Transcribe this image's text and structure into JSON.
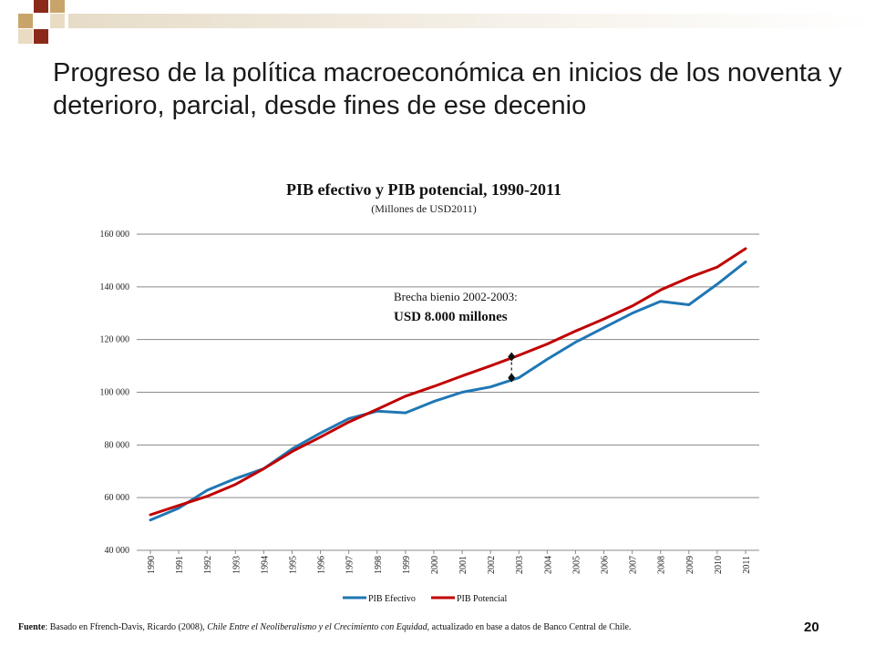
{
  "slide": {
    "title": "Progreso de la política macroeconómica en inicios de los noventa y deterioro, parcial, desde fines de ese decenio",
    "page_number": "20",
    "footer": {
      "label": "Fuente",
      "text_before": ": Basado en Ffrench-Davis, Ricardo (2008), ",
      "book": "Chile Entre el Neoliberalismo y el Crecimiento con Equidad",
      "text_after": ", actualizado en base a datos de Banco Central de Chile."
    },
    "colors": {
      "deco_red": "#8b2a1a",
      "deco_tan": "#c9a46a",
      "deco_light": "#e9dcc3"
    }
  },
  "chart_data": {
    "type": "line",
    "title": "PIB efectivo y PIB potencial, 1990-2011",
    "subtitle": "(Millones de USD2011)",
    "x": [
      "1990",
      "1991",
      "1992",
      "1993",
      "1994",
      "1995",
      "1996",
      "1997",
      "1998",
      "1999",
      "2000",
      "2001",
      "2002",
      "2003",
      "2004",
      "2005",
      "2006",
      "2007",
      "2008",
      "2009",
      "2010",
      "2011"
    ],
    "ylim": [
      40000,
      160000
    ],
    "yticks": [
      40000,
      60000,
      80000,
      100000,
      120000,
      140000,
      160000
    ],
    "ytick_labels": [
      "40 000",
      "60 000",
      "80 000",
      "100 000",
      "120 000",
      "140 000",
      "160 000"
    ],
    "grid": true,
    "legend_position": "bottom",
    "series": [
      {
        "name": "PIB Efectivo",
        "color": "#1f77b4",
        "values": [
          51500,
          56000,
          62800,
          67200,
          71000,
          78500,
          84500,
          90000,
          92800,
          92200,
          96500,
          100000,
          102000,
          105500,
          112500,
          119000,
          124500,
          130000,
          134500,
          133200,
          141000,
          149500
        ]
      },
      {
        "name": "PIB Potencial",
        "color": "#c00000",
        "values": [
          53500,
          57000,
          60500,
          65000,
          71000,
          77500,
          83000,
          88700,
          93500,
          98500,
          102200,
          106200,
          110000,
          114000,
          118300,
          123200,
          127800,
          132700,
          138800,
          143500,
          147500,
          154500
        ]
      }
    ],
    "annotation": {
      "line1": "Brecha bienio 2002-2003:",
      "line2": "USD 8.000 millones",
      "year": "2003",
      "from": 105500,
      "to": 113500
    }
  }
}
